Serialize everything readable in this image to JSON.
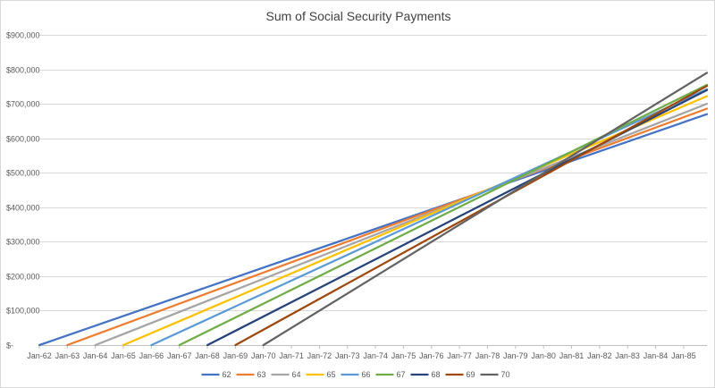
{
  "chart_data": {
    "type": "line",
    "title": "Sum of Social Security Payments",
    "xlabel": "",
    "ylabel": "",
    "x_unit": "month",
    "xlim": [
      "Jan-62",
      "Nov-85"
    ],
    "x_tick_labels": [
      "Jan-62",
      "Jan-63",
      "Jan-64",
      "Jan-65",
      "Jan-66",
      "Jan-67",
      "Jan-68",
      "Jan-69",
      "Jan-70",
      "Jan-71",
      "Jan-72",
      "Jan-73",
      "Jan-74",
      "Jan-75",
      "Jan-76",
      "Jan-77",
      "Jan-78",
      "Jan-79",
      "Jan-80",
      "Jan-81",
      "Jan-82",
      "Jan-83",
      "Jan-84",
      "Jan-85"
    ],
    "ylim": [
      0,
      900000
    ],
    "y_ticks": [
      0,
      100000,
      200000,
      300000,
      400000,
      500000,
      600000,
      700000,
      800000,
      900000
    ],
    "y_tick_labels": [
      "$-",
      "$100,000",
      "$200,000",
      "$300,000",
      "$400,000",
      "$500,000",
      "$600,000",
      "$700,000",
      "$800,000",
      "$900,000"
    ],
    "grid": true,
    "legend_position": "bottom",
    "series": [
      {
        "name": "62",
        "color": "#4472C4",
        "x": [
          "Jan-62",
          "Nov-85"
        ],
        "y": [
          0,
          670000
        ]
      },
      {
        "name": "63",
        "color": "#ED7D31",
        "x": [
          "Jan-63",
          "Nov-85"
        ],
        "y": [
          0,
          686000
        ]
      },
      {
        "name": "64",
        "color": "#A5A5A5",
        "x": [
          "Jan-64",
          "Nov-85"
        ],
        "y": [
          0,
          700000
        ]
      },
      {
        "name": "65",
        "color": "#FFC000",
        "x": [
          "Jan-65",
          "Nov-85"
        ],
        "y": [
          0,
          722000
        ]
      },
      {
        "name": "66",
        "color": "#5B9BD5",
        "x": [
          "Jan-66",
          "Nov-85"
        ],
        "y": [
          0,
          742000
        ]
      },
      {
        "name": "67",
        "color": "#70AD47",
        "x": [
          "Jan-67",
          "Nov-85"
        ],
        "y": [
          0,
          755000
        ]
      },
      {
        "name": "68",
        "color": "#264478",
        "x": [
          "Jan-68",
          "Nov-85"
        ],
        "y": [
          0,
          740000
        ]
      },
      {
        "name": "69",
        "color": "#9E480E",
        "x": [
          "Jan-69",
          "Nov-85"
        ],
        "y": [
          0,
          752000
        ]
      },
      {
        "name": "70",
        "color": "#636363",
        "x": [
          "Jan-70",
          "Nov-85"
        ],
        "y": [
          0,
          790000
        ]
      }
    ]
  }
}
